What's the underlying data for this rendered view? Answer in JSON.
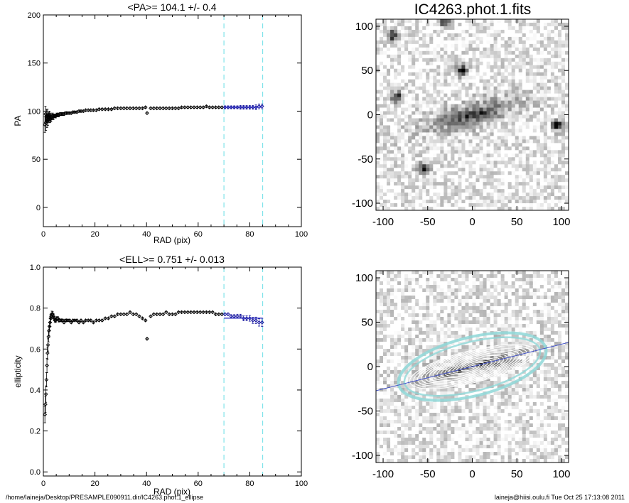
{
  "footer": {
    "path": "/home/laineja/Desktop/PRESAMPLE090911.dir/IC4263.phot.1_ellipse",
    "stamp": "laineja@hiisi.oulu.fi  Tue Oct 25 17:13:08 2011"
  },
  "colors": {
    "points": "#000000",
    "fit_points": "#1a1aa0",
    "fit_line": "#3030c0",
    "limit_lines": "#7fe3ea",
    "isophotes": "#ffffff",
    "outer_isophote": "#8fd8d8",
    "major_axis": "#4050c8"
  },
  "chart_data": [
    {
      "id": "pa",
      "type": "scatter",
      "title": "<PA>= 104.1 +/-   0.4",
      "xlabel": "RAD (pix)",
      "ylabel": "PA",
      "xlim": [
        0,
        100
      ],
      "ylim": [
        -20,
        200
      ],
      "xticks": [
        0,
        20,
        40,
        60,
        80,
        100
      ],
      "yticks": [
        0,
        50,
        100,
        150,
        200
      ],
      "grid": false,
      "fit_range": [
        70,
        85
      ],
      "mean": 104.1,
      "fit_line": {
        "x": [
          70,
          85
        ],
        "y": [
          104.1,
          104.1
        ]
      },
      "series": [
        {
          "x": [
            0.6,
            0.8,
            1.0,
            1.2,
            1.4,
            1.6,
            1.8,
            2.0,
            2.2,
            2.4,
            2.6,
            2.8,
            3.0,
            3.3,
            3.6,
            3.9,
            4.2,
            4.5,
            4.8,
            5.2,
            5.6,
            6.0,
            6.5,
            7.0,
            7.5,
            8.0,
            8.5,
            9.0,
            9.6,
            10.2,
            10.8,
            11.5,
            12.2,
            13.0,
            13.8,
            14.6,
            15.5,
            16.4,
            17.4,
            18.4,
            19.4,
            20.5,
            21.6,
            22.8,
            24.0,
            25.2,
            26.4,
            27.6,
            28.8,
            30.0,
            31.2,
            32.4,
            33.6,
            34.8,
            36.0,
            37.2,
            38.4,
            39.6,
            40.2,
            41.6,
            42.8,
            44.0,
            45.2,
            46.4,
            47.6,
            48.8,
            50.0,
            51.2,
            52.4,
            53.6,
            54.8,
            56.0,
            57.2,
            58.4,
            59.6,
            60.8,
            62.0,
            63.2,
            64.4,
            65.6,
            66.8,
            68.0,
            69.2,
            70.4,
            71.6,
            72.8,
            74.0,
            75.2,
            76.4,
            77.6,
            78.8,
            80.0,
            81.2,
            82.4,
            83.6,
            84.8
          ],
          "y": [
            86,
            97,
            88,
            95,
            90,
            96,
            91,
            94,
            93,
            95,
            92,
            94,
            93,
            94,
            95,
            94,
            95,
            95,
            95,
            96,
            96,
            96,
            97,
            97,
            97,
            97,
            98,
            98,
            98,
            98,
            98,
            99,
            99,
            99,
            100,
            100,
            100,
            101,
            101,
            101,
            101,
            101,
            102,
            102,
            102,
            102,
            102,
            103,
            103,
            103,
            103,
            103,
            103,
            103,
            103,
            103,
            103,
            104,
            98,
            103,
            103,
            103,
            103,
            103,
            103,
            103,
            103,
            103,
            103,
            104,
            104,
            104,
            104,
            104,
            104,
            104,
            104,
            105,
            104,
            104,
            104,
            104,
            104,
            104,
            104,
            104,
            104,
            104,
            104,
            104,
            104,
            104,
            104,
            104,
            105,
            105
          ],
          "err": [
            8,
            8,
            8,
            7,
            7,
            6,
            6,
            5,
            5,
            5,
            4,
            4,
            4,
            3,
            3,
            3,
            2,
            2,
            2,
            2,
            2,
            2,
            1.5,
            1.5,
            1.5,
            1.5,
            1.2,
            1.2,
            1.2,
            1,
            1,
            1,
            1,
            1,
            1,
            1,
            1,
            1,
            1,
            1,
            1,
            1,
            1,
            1,
            1,
            1,
            1,
            1,
            1,
            1,
            1,
            1,
            1,
            1,
            1,
            1,
            1,
            1,
            1,
            1,
            1,
            1,
            1,
            1,
            1,
            1,
            1,
            1,
            1,
            1,
            1,
            1,
            1,
            1,
            1,
            1,
            1,
            1,
            1,
            1,
            1,
            1,
            1,
            1.5,
            1.5,
            1.5,
            1.5,
            1.5,
            2,
            2,
            2,
            2,
            2,
            2.5,
            2.5,
            2.5
          ]
        }
      ]
    },
    {
      "id": "ell",
      "type": "scatter",
      "title": "<ELL>= 0.751 +/-  0.013",
      "xlabel": "RAD (pix)",
      "ylabel": "ellipticity",
      "xlim": [
        0,
        100
      ],
      "ylim": [
        -0.02,
        1.0
      ],
      "xticks": [
        0,
        20,
        40,
        60,
        80,
        100
      ],
      "yticks": [
        0.0,
        0.2,
        0.4,
        0.6,
        0.8,
        1.0
      ],
      "ytick_labels": [
        "0.0",
        "0.2",
        "0.4",
        "0.6",
        "0.8",
        "1.0"
      ],
      "grid": false,
      "fit_range": [
        70,
        85
      ],
      "mean": 0.751,
      "fit_line": {
        "x": [
          70,
          85
        ],
        "y": [
          0.751,
          0.751
        ]
      },
      "series": [
        {
          "x": [
            0.6,
            0.8,
            1.0,
            1.2,
            1.4,
            1.6,
            1.8,
            2.0,
            2.2,
            2.4,
            2.6,
            2.8,
            3.0,
            3.3,
            3.6,
            3.9,
            4.2,
            4.5,
            4.8,
            5.2,
            5.6,
            6.0,
            6.5,
            7.0,
            7.5,
            8.0,
            8.5,
            9.0,
            9.6,
            10.2,
            10.8,
            11.5,
            12.2,
            13.0,
            13.8,
            14.6,
            15.5,
            16.4,
            17.4,
            18.4,
            19.4,
            20.5,
            21.6,
            22.8,
            24.0,
            25.2,
            26.4,
            27.6,
            28.8,
            30.0,
            31.2,
            32.4,
            33.6,
            34.8,
            36.0,
            37.2,
            38.4,
            39.6,
            40.2,
            41.6,
            42.8,
            44.0,
            45.2,
            46.4,
            47.6,
            48.8,
            50.0,
            51.2,
            52.4,
            53.6,
            54.8,
            56.0,
            57.2,
            58.4,
            59.6,
            60.8,
            62.0,
            63.2,
            64.4,
            65.6,
            66.8,
            68.0,
            69.2,
            70.4,
            71.6,
            72.8,
            74.0,
            75.2,
            76.4,
            77.6,
            78.8,
            80.0,
            81.2,
            82.4,
            83.6,
            84.8
          ],
          "y": [
            0.28,
            0.33,
            0.38,
            0.45,
            0.52,
            0.58,
            0.62,
            0.66,
            0.69,
            0.71,
            0.73,
            0.75,
            0.76,
            0.77,
            0.77,
            0.76,
            0.75,
            0.74,
            0.74,
            0.75,
            0.75,
            0.74,
            0.74,
            0.74,
            0.74,
            0.73,
            0.74,
            0.74,
            0.74,
            0.74,
            0.73,
            0.74,
            0.74,
            0.74,
            0.73,
            0.74,
            0.73,
            0.74,
            0.74,
            0.74,
            0.73,
            0.74,
            0.74,
            0.74,
            0.75,
            0.75,
            0.76,
            0.76,
            0.77,
            0.77,
            0.77,
            0.77,
            0.78,
            0.77,
            0.77,
            0.76,
            0.75,
            0.74,
            0.65,
            0.76,
            0.77,
            0.77,
            0.77,
            0.77,
            0.78,
            0.77,
            0.77,
            0.77,
            0.78,
            0.78,
            0.78,
            0.78,
            0.78,
            0.78,
            0.78,
            0.78,
            0.78,
            0.78,
            0.78,
            0.78,
            0.77,
            0.77,
            0.77,
            0.77,
            0.77,
            0.76,
            0.76,
            0.76,
            0.76,
            0.75,
            0.75,
            0.75,
            0.74,
            0.74,
            0.73,
            0.73
          ],
          "err": [
            0.04,
            0.04,
            0.04,
            0.035,
            0.035,
            0.03,
            0.03,
            0.025,
            0.025,
            0.02,
            0.02,
            0.02,
            0.015,
            0.015,
            0.012,
            0.012,
            0.01,
            0.01,
            0.01,
            0.008,
            0.008,
            0.008,
            0.006,
            0.006,
            0.006,
            0.005,
            0.005,
            0.005,
            0.005,
            0.005,
            0.004,
            0.004,
            0.004,
            0.004,
            0.004,
            0.004,
            0.004,
            0.004,
            0.004,
            0.004,
            0.004,
            0.004,
            0.004,
            0.004,
            0.004,
            0.004,
            0.004,
            0.004,
            0.004,
            0.004,
            0.004,
            0.004,
            0.004,
            0.004,
            0.004,
            0.004,
            0.004,
            0.004,
            0.004,
            0.004,
            0.004,
            0.004,
            0.004,
            0.004,
            0.004,
            0.004,
            0.004,
            0.004,
            0.004,
            0.004,
            0.004,
            0.004,
            0.004,
            0.004,
            0.004,
            0.004,
            0.004,
            0.004,
            0.004,
            0.004,
            0.004,
            0.004,
            0.004,
            0.006,
            0.006,
            0.008,
            0.008,
            0.01,
            0.01,
            0.012,
            0.012,
            0.014,
            0.015,
            0.016,
            0.018,
            0.02
          ]
        }
      ]
    },
    {
      "id": "img1",
      "type": "heatmap",
      "title": "IC4263.phot.1.fits",
      "xlim": [
        -108,
        108
      ],
      "ylim": [
        -108,
        108
      ],
      "xticks": [
        -100,
        -50,
        0,
        50,
        100
      ],
      "yticks": [
        -100,
        -50,
        0,
        50,
        100
      ],
      "colormap": "gray-inverted",
      "grid": false,
      "galaxy": {
        "center": [
          0,
          0
        ],
        "major_axis_pa_deg": 104.1,
        "ellipticity": 0.751
      },
      "point_sources": [
        [
          -55,
          -60
        ],
        [
          95,
          -12
        ],
        [
          -12,
          50
        ],
        [
          -90,
          90
        ],
        [
          -30,
          105
        ],
        [
          -85,
          20
        ]
      ]
    },
    {
      "id": "img2",
      "type": "heatmap",
      "title": "",
      "xlim": [
        -108,
        108
      ],
      "ylim": [
        -108,
        108
      ],
      "xticks": [
        -100,
        -50,
        0,
        50,
        100
      ],
      "yticks": [
        -100,
        -50,
        0,
        50,
        100
      ],
      "colormap": "gray-inverted",
      "grid": false,
      "isophote_count": 16,
      "outer_isophote_semi_major": 85,
      "galaxy": {
        "center": [
          0,
          0
        ],
        "major_axis_pa_deg": 104.1,
        "ellipticity": 0.751
      }
    }
  ]
}
